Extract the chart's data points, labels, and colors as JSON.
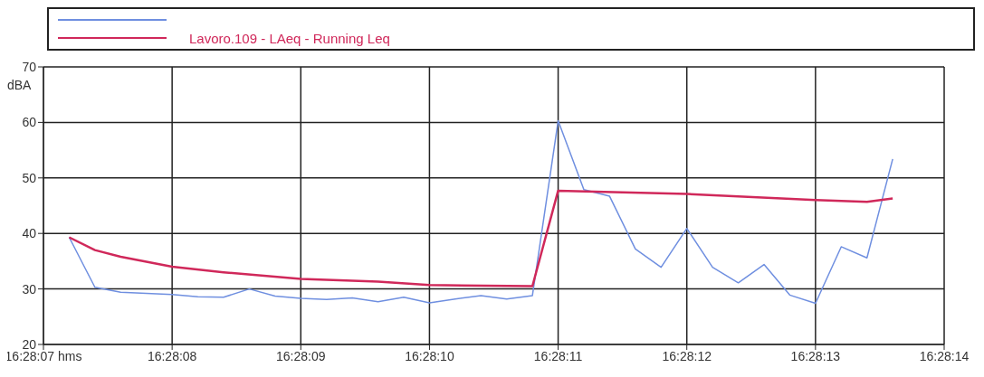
{
  "chart_data": {
    "type": "line",
    "ylabel": "dBA",
    "ylim": [
      20,
      70
    ],
    "yticks": [
      20,
      30,
      40,
      50,
      60,
      70
    ],
    "xlim": [
      16.46861111,
      16.47055556
    ],
    "xticks": [
      {
        "value": 16.46861111,
        "label": "16:28:07 hms"
      },
      {
        "value": 16.46888889,
        "label": "16:28:08"
      },
      {
        "value": 16.46916667,
        "label": "16:28:09"
      },
      {
        "value": 16.46944444,
        "label": "16:28:10"
      },
      {
        "value": 16.46972222,
        "label": "16:28:11"
      },
      {
        "value": 16.47,
        "label": "16:28:12"
      },
      {
        "value": 16.47027778,
        "label": "16:28:13"
      },
      {
        "value": 16.47055556,
        "label": "16:28:14"
      }
    ],
    "grid": true,
    "legend": "top",
    "marker": "none",
    "line_style": "solid",
    "series": [
      {
        "color": "#6f8fe0",
        "x": [
          16.46866667,
          16.46872222,
          16.46877778,
          16.46883333,
          16.46888889,
          16.46894444,
          16.469,
          16.46905556,
          16.46911111,
          16.46916667,
          16.46922222,
          16.46927778,
          16.46933333,
          16.46938889,
          16.46944444,
          16.4695,
          16.46955556,
          16.46961111,
          16.46966667,
          16.46972222,
          16.46977778,
          16.46983333,
          16.46988889,
          16.46994444,
          16.47,
          16.47005556,
          16.47011111,
          16.47016667,
          16.47022222,
          16.47027778,
          16.47033333,
          16.47038889,
          16.47044444
        ],
        "values": [
          39.3,
          30.3,
          29.4,
          29.2,
          29.0,
          28.6,
          28.5,
          30.0,
          28.7,
          28.3,
          28.1,
          28.4,
          27.7,
          28.5,
          27.5,
          28.2,
          28.8,
          28.2,
          28.8,
          60.3,
          47.9,
          46.7,
          37.2,
          33.9,
          40.9,
          33.9,
          31.1,
          34.4,
          28.9,
          27.4,
          37.6,
          35.6,
          53.4
        ]
      },
      {
        "name": "Lavoro.109 - LAeq - Running Leq",
        "color": "#d0285a",
        "x": [
          16.46866667,
          16.46872222,
          16.46877778,
          16.46883333,
          16.46888889,
          16.469,
          16.46916667,
          16.46933333,
          16.46944444,
          16.46966667,
          16.46972222,
          16.47,
          16.47027778,
          16.47038889,
          16.47044444
        ],
        "values": [
          39.3,
          37.0,
          35.8,
          34.9,
          34.0,
          33.0,
          31.8,
          31.3,
          30.7,
          30.5,
          47.7,
          47.1,
          46.0,
          45.7,
          46.3
        ]
      }
    ]
  }
}
